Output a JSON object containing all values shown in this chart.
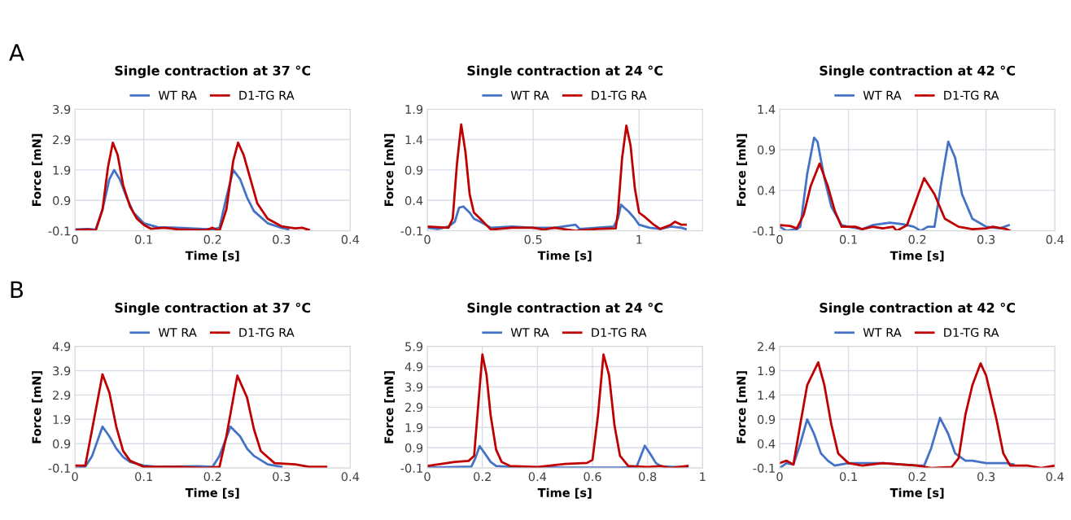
{
  "chart_data": [
    {
      "type": "line",
      "title": "Single contraction at 37 °C",
      "xlabel": "Time [s]",
      "ylabel": "Force [mN]",
      "annotations": [
        "A"
      ],
      "xlim": [
        0,
        0.4
      ],
      "xticks": [
        0,
        0.1,
        0.2,
        0.3,
        0.4
      ],
      "ylim": [
        -0.1,
        3.9
      ],
      "yticks": [
        -0.1,
        0.9,
        1.9,
        2.9,
        3.9
      ],
      "grid": true,
      "legend": "top",
      "line_style": "solid",
      "series": [
        {
          "name": "WT RA",
          "color": "#4472c4",
          "x": [
            0,
            0.02,
            0.03,
            0.04,
            0.05,
            0.057,
            0.065,
            0.075,
            0.085,
            0.1,
            0.12,
            0.15,
            0.2,
            0.21,
            0.22,
            0.23,
            0.24,
            0.25,
            0.26,
            0.28,
            0.3,
            0.31
          ],
          "values": [
            -0.05,
            -0.04,
            -0.06,
            0.6,
            1.6,
            1.9,
            1.6,
            1.0,
            0.5,
            0.15,
            0.02,
            0.0,
            -0.05,
            0.0,
            1.0,
            1.9,
            1.6,
            1.0,
            0.55,
            0.15,
            0.0,
            -0.05
          ]
        },
        {
          "name": "D1-TG RA",
          "color": "#c00000",
          "x": [
            0,
            0.02,
            0.03,
            0.04,
            0.048,
            0.055,
            0.062,
            0.07,
            0.08,
            0.09,
            0.1,
            0.11,
            0.13,
            0.15,
            0.19,
            0.2,
            0.21,
            0.22,
            0.23,
            0.237,
            0.245,
            0.255,
            0.265,
            0.28,
            0.3,
            0.32,
            0.33,
            0.34
          ],
          "values": [
            -0.07,
            -0.05,
            -0.1,
            0.6,
            2.0,
            2.8,
            2.4,
            1.4,
            0.7,
            0.3,
            0.1,
            -0.03,
            0.0,
            -0.05,
            -0.08,
            0.0,
            -0.1,
            0.6,
            2.2,
            2.8,
            2.4,
            1.6,
            0.8,
            0.3,
            0.05,
            -0.02,
            0.0,
            -0.07
          ]
        }
      ]
    },
    {
      "type": "line",
      "title": "Single contraction at 24 °C",
      "xlabel": "Time [s]",
      "ylabel": "Force [mN]",
      "xlim": [
        0,
        1.3
      ],
      "xticks": [
        0,
        0.5,
        1
      ],
      "ylim": [
        -0.1,
        1.9
      ],
      "yticks": [
        -0.1,
        0.4,
        0.9,
        1.4,
        1.9
      ],
      "grid": true,
      "legend": "top",
      "line_style": "solid",
      "series": [
        {
          "name": "WT RA",
          "color": "#4472c4",
          "x": [
            0,
            0.05,
            0.1,
            0.13,
            0.15,
            0.17,
            0.2,
            0.22,
            0.25,
            0.3,
            0.4,
            0.5,
            0.6,
            0.7,
            0.72,
            0.8,
            0.88,
            0.9,
            0.915,
            0.93,
            0.95,
            0.98,
            1.0,
            1.05,
            1.1,
            1.15,
            1.2,
            1.22
          ],
          "values": [
            -0.05,
            -0.07,
            -0.03,
            0.05,
            0.28,
            0.3,
            0.2,
            0.1,
            0.05,
            -0.05,
            -0.03,
            -0.05,
            -0.05,
            0.0,
            -0.07,
            -0.05,
            -0.03,
            0.1,
            0.33,
            0.28,
            0.22,
            0.1,
            0.0,
            -0.05,
            -0.07,
            -0.03,
            -0.05,
            -0.07
          ]
        },
        {
          "name": "D1-TG RA",
          "color": "#c00000",
          "x": [
            0,
            0.1,
            0.12,
            0.14,
            0.16,
            0.18,
            0.2,
            0.22,
            0.25,
            0.3,
            0.4,
            0.5,
            0.55,
            0.6,
            0.7,
            0.8,
            0.89,
            0.9,
            0.92,
            0.94,
            0.96,
            0.98,
            1.0,
            1.03,
            1.07,
            1.1,
            1.15,
            1.17,
            1.2,
            1.22
          ],
          "values": [
            -0.03,
            -0.05,
            0.1,
            1.0,
            1.65,
            1.2,
            0.5,
            0.2,
            0.1,
            -0.08,
            -0.05,
            -0.05,
            -0.08,
            -0.05,
            -0.1,
            -0.07,
            -0.06,
            0.2,
            1.1,
            1.63,
            1.3,
            0.6,
            0.2,
            0.12,
            0.0,
            -0.07,
            0.0,
            0.05,
            0.0,
            0.0
          ]
        }
      ]
    },
    {
      "type": "line",
      "title": "Single contraction at 42 °C",
      "xlabel": "Time [s]",
      "ylabel": "Force [mN]",
      "xlim": [
        0,
        0.4
      ],
      "xticks": [
        0,
        0.1,
        0.2,
        0.3,
        0.4
      ],
      "ylim": [
        -0.1,
        1.4
      ],
      "yticks": [
        -0.1,
        0.4,
        0.9,
        1.4
      ],
      "grid": true,
      "legend": "top",
      "line_style": "solid",
      "series": [
        {
          "name": "WT RA",
          "color": "#4472c4",
          "x": [
            0,
            0.01,
            0.025,
            0.03,
            0.04,
            0.05,
            0.055,
            0.065,
            0.075,
            0.09,
            0.1,
            0.12,
            0.135,
            0.16,
            0.18,
            0.195,
            0.205,
            0.215,
            0.225,
            0.235,
            0.245,
            0.255,
            0.265,
            0.28,
            0.3,
            0.32,
            0.333
          ],
          "values": [
            -0.05,
            -0.1,
            -0.08,
            -0.05,
            0.6,
            1.05,
            1.0,
            0.55,
            0.2,
            -0.03,
            -0.05,
            -0.08,
            -0.03,
            0.0,
            -0.02,
            -0.05,
            -0.1,
            -0.05,
            -0.05,
            0.5,
            1.0,
            0.8,
            0.35,
            0.05,
            -0.05,
            -0.07,
            -0.03
          ]
        },
        {
          "name": "D1-TG RA",
          "color": "#c00000",
          "x": [
            0,
            0.015,
            0.025,
            0.035,
            0.045,
            0.058,
            0.07,
            0.08,
            0.09,
            0.11,
            0.12,
            0.135,
            0.15,
            0.165,
            0.17,
            0.185,
            0.195,
            0.21,
            0.225,
            0.24,
            0.26,
            0.28,
            0.3,
            0.31,
            0.33,
            0.335
          ],
          "values": [
            -0.03,
            -0.04,
            -0.07,
            0.1,
            0.45,
            0.73,
            0.45,
            0.15,
            -0.05,
            -0.05,
            -0.08,
            -0.05,
            -0.07,
            -0.05,
            -0.1,
            -0.03,
            0.2,
            0.55,
            0.35,
            0.05,
            -0.05,
            -0.08,
            -0.07,
            -0.05,
            -0.08,
            -0.1
          ]
        }
      ]
    },
    {
      "type": "line",
      "title": "Single contraction at 37 °C",
      "xlabel": "Time [s]",
      "ylabel": "Force [mN]",
      "annotations": [
        "B"
      ],
      "xlim": [
        0,
        0.4
      ],
      "xticks": [
        0,
        0.1,
        0.2,
        0.3,
        0.4
      ],
      "ylim": [
        -0.1,
        4.9
      ],
      "yticks": [
        -0.1,
        0.9,
        1.9,
        2.9,
        3.9,
        4.9
      ],
      "grid": true,
      "legend": "top",
      "line_style": "solid",
      "series": [
        {
          "name": "WT RA",
          "color": "#4472c4",
          "x": [
            0,
            0.015,
            0.025,
            0.04,
            0.05,
            0.06,
            0.07,
            0.08,
            0.1,
            0.12,
            0.18,
            0.2,
            0.21,
            0.226,
            0.24,
            0.25,
            0.26,
            0.28,
            0.3
          ],
          "values": [
            -0.1,
            -0.05,
            0.4,
            1.6,
            1.2,
            0.7,
            0.35,
            0.15,
            0.0,
            -0.05,
            -0.03,
            -0.05,
            0.4,
            1.6,
            1.2,
            0.7,
            0.4,
            0.05,
            -0.05
          ]
        },
        {
          "name": "D1-TG RA",
          "color": "#c00000",
          "x": [
            0,
            0.015,
            0.025,
            0.04,
            0.05,
            0.06,
            0.07,
            0.08,
            0.1,
            0.15,
            0.19,
            0.21,
            0.22,
            0.236,
            0.25,
            0.26,
            0.27,
            0.29,
            0.32,
            0.34,
            0.365
          ],
          "values": [
            0.0,
            0.0,
            1.5,
            3.75,
            3.0,
            1.6,
            0.6,
            0.2,
            -0.05,
            -0.05,
            -0.1,
            -0.05,
            1.2,
            3.7,
            2.8,
            1.5,
            0.6,
            0.1,
            0.05,
            -0.05,
            -0.05
          ]
        }
      ]
    },
    {
      "type": "line",
      "title": "Single contraction at 24 °C",
      "xlabel": "Time [s]",
      "ylabel": "Force [mN]",
      "xlim": [
        0,
        1
      ],
      "xticks": [
        0,
        0.2,
        0.4,
        0.6,
        0.8,
        1
      ],
      "ylim": [
        -0.1,
        5.9
      ],
      "yticks": [
        -0.1,
        0.9,
        1.9,
        2.9,
        3.9,
        4.9,
        5.9
      ],
      "grid": true,
      "legend": "top",
      "line_style": "solid",
      "series": [
        {
          "name": "WT RA",
          "color": "#4472c4",
          "x": [
            0,
            0.1,
            0.16,
            0.175,
            0.19,
            0.21,
            0.23,
            0.25,
            0.3,
            0.5,
            0.7,
            0.76,
            0.77,
            0.79,
            0.81,
            0.83,
            0.85,
            0.9,
            0.945
          ],
          "values": [
            -0.08,
            -0.05,
            -0.03,
            0.4,
            0.98,
            0.6,
            0.2,
            0.0,
            -0.05,
            -0.08,
            -0.08,
            -0.05,
            0.3,
            1.0,
            0.6,
            0.15,
            -0.02,
            -0.05,
            -0.07
          ]
        },
        {
          "name": "D1-TG RA",
          "color": "#c00000",
          "x": [
            0,
            0.05,
            0.1,
            0.15,
            0.17,
            0.185,
            0.2,
            0.215,
            0.23,
            0.25,
            0.27,
            0.3,
            0.4,
            0.5,
            0.58,
            0.6,
            0.62,
            0.64,
            0.66,
            0.68,
            0.7,
            0.73,
            0.8,
            0.85,
            0.88,
            0.945
          ],
          "values": [
            0.0,
            0.1,
            0.2,
            0.25,
            0.5,
            3.0,
            5.5,
            4.5,
            2.5,
            0.8,
            0.2,
            0.0,
            -0.05,
            0.1,
            0.15,
            0.3,
            2.5,
            5.5,
            4.5,
            2.0,
            0.5,
            0.0,
            -0.05,
            0.0,
            -0.1,
            0.0
          ]
        }
      ]
    },
    {
      "type": "line",
      "title": "Single contraction at 42 °C",
      "xlabel": "Time [s]",
      "ylabel": "Force [mN]",
      "xlim": [
        0,
        0.4
      ],
      "xticks": [
        0,
        0.1,
        0.2,
        0.3,
        0.4
      ],
      "ylim": [
        -0.1,
        2.4
      ],
      "yticks": [
        -0.1,
        0.4,
        0.9,
        1.4,
        1.9,
        2.4
      ],
      "grid": true,
      "legend": "top",
      "line_style": "solid",
      "series": [
        {
          "name": "WT RA",
          "color": "#4472c4",
          "x": [
            0,
            0.01,
            0.02,
            0.03,
            0.04,
            0.05,
            0.06,
            0.07,
            0.08,
            0.1,
            0.15,
            0.2,
            0.21,
            0.22,
            0.233,
            0.245,
            0.255,
            0.27,
            0.28,
            0.3,
            0.33,
            0.34
          ],
          "values": [
            -0.1,
            0.0,
            -0.03,
            0.4,
            0.9,
            0.6,
            0.2,
            0.05,
            -0.05,
            0.0,
            0.0,
            -0.05,
            -0.05,
            0.3,
            0.93,
            0.6,
            0.2,
            0.05,
            0.05,
            0.0,
            0.0,
            -0.03
          ]
        },
        {
          "name": "D1-TG RA",
          "color": "#c00000",
          "x": [
            0,
            0.01,
            0.02,
            0.03,
            0.04,
            0.056,
            0.065,
            0.075,
            0.085,
            0.1,
            0.12,
            0.15,
            0.2,
            0.22,
            0.25,
            0.26,
            0.27,
            0.28,
            0.292,
            0.3,
            0.315,
            0.325,
            0.335,
            0.36,
            0.38,
            0.4
          ],
          "values": [
            0.0,
            0.05,
            -0.03,
            0.8,
            1.6,
            2.07,
            1.6,
            0.8,
            0.2,
            0.0,
            -0.05,
            0.0,
            -0.05,
            -0.1,
            -0.08,
            0.1,
            1.0,
            1.6,
            2.05,
            1.8,
            0.9,
            0.2,
            -0.05,
            -0.05,
            -0.1,
            -0.05
          ]
        }
      ]
    }
  ]
}
